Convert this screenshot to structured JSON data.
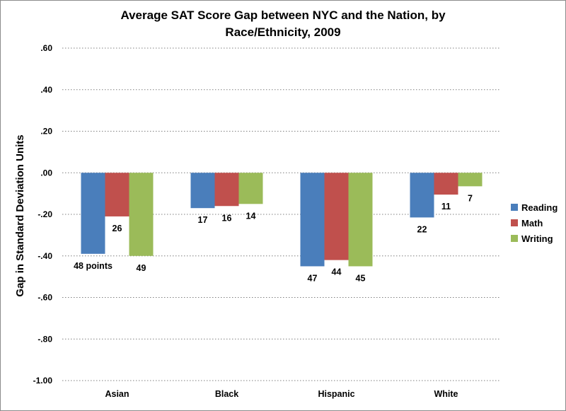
{
  "chart_data": {
    "type": "bar",
    "title_lines": [
      "Average SAT Score Gap between NYC and the Nation, by",
      "Race/Ethnicity, 2009"
    ],
    "xlabel": "",
    "ylabel": "Gap in Standard Deviation Units",
    "ylim": [
      -1.0,
      0.6
    ],
    "yticks": [
      0.6,
      0.4,
      0.2,
      0.0,
      -0.2,
      -0.4,
      -0.6,
      -0.8,
      -1.0
    ],
    "ytick_labels": [
      ".60",
      ".40",
      ".20",
      ".00",
      "-.20",
      "-.40",
      "-.60",
      "-.80",
      "-1.00"
    ],
    "grid": "horizontal dotted",
    "legend_position": "right",
    "categories": [
      "Asian",
      "Black",
      "Hispanic",
      "White"
    ],
    "series": [
      {
        "name": "Reading",
        "color": "#4a7ebb",
        "values": [
          -0.39,
          -0.17,
          -0.45,
          -0.215
        ],
        "labels": [
          "48 points",
          "17",
          "47",
          "22"
        ]
      },
      {
        "name": "Math",
        "color": "#c0504d",
        "values": [
          -0.21,
          -0.16,
          -0.42,
          -0.105
        ],
        "labels": [
          "26",
          "16",
          "44",
          "11"
        ]
      },
      {
        "name": "Writing",
        "color": "#9bbb59",
        "values": [
          -0.4,
          -0.15,
          -0.45,
          -0.065
        ],
        "labels": [
          "49",
          "14",
          "45",
          "7"
        ]
      }
    ]
  }
}
